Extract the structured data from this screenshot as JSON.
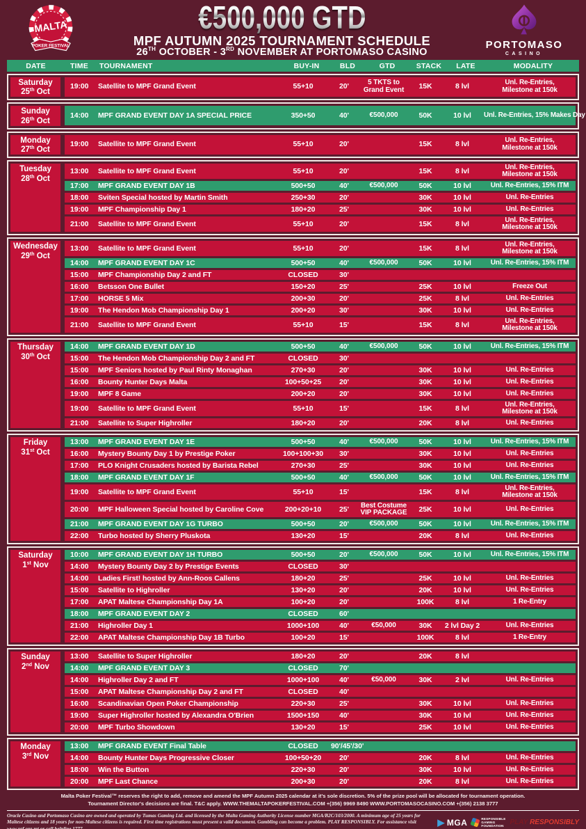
{
  "header": {
    "gtd": "€500,000 GTD",
    "title": "MPF AUTUMN 2025 TOURNAMENT SCHEDULE",
    "sub": {
      "d1": "26",
      "s1": "TH",
      "m1": " OCTOBER - ",
      "d2": "3",
      "s2": "RD",
      "m2": " NOVEMBER AT PORTOMASO CASINO"
    }
  },
  "logo_left": {
    "title": "MALTA",
    "subtitle": "POKER FESTIVAL"
  },
  "logo_right": {
    "title": "PORTOMASO",
    "subtitle": "CASINO"
  },
  "columns": [
    "DATE",
    "TIME",
    "TOURNAMENT",
    "BUY-IN",
    "BLD",
    "GTD",
    "STACK",
    "LATE",
    "MODALITY"
  ],
  "colors": {
    "background": "#5c1c2e",
    "row_crimson": "#c31238",
    "green": "#2f9c6e",
    "frame_white": "#f2e9e7",
    "play_red": "#e03a2f"
  },
  "schedule": [
    {
      "day": "Saturday",
      "date": "25th Oct",
      "rows": [
        {
          "time": "19:00",
          "name": "Satellite to MPF Grand Event",
          "buyin": "55+10",
          "bld": "20'",
          "gtd": "5 TKTS to\nGrand Event",
          "stack": "15K",
          "late": "8 lvl",
          "modality": "Unl. Re-Entries,\nMilestone at 150k",
          "green": false
        }
      ]
    },
    {
      "day": "Sunday",
      "date": "26th Oct",
      "rows": [
        {
          "time": "14:00",
          "name": "MPF GRAND EVENT DAY 1A SPECIAL PRICE",
          "buyin": "350+50",
          "bld": "40'",
          "gtd": "€500,000",
          "stack": "50K",
          "late": "10 lvl",
          "modality": "Unl. Re-Entries,\n15% Makes Day 2",
          "green": true
        }
      ]
    },
    {
      "day": "Monday",
      "date": "27th Oct",
      "rows": [
        {
          "time": "19:00",
          "name": "Satellite to MPF Grand Event",
          "buyin": "55+10",
          "bld": "20'",
          "gtd": "",
          "stack": "15K",
          "late": "8 lvl",
          "modality": "Unl. Re-Entries,\nMilestone at 150k",
          "green": false
        }
      ]
    },
    {
      "day": "Tuesday",
      "date": "28th Oct",
      "rows": [
        {
          "time": "13:00",
          "name": "Satellite to MPF Grand Event",
          "buyin": "55+10",
          "bld": "20'",
          "gtd": "",
          "stack": "15K",
          "late": "8 lvl",
          "modality": "Unl. Re-Entries,\nMilestone at 150k",
          "green": false
        },
        {
          "time": "17:00",
          "name": "MPF GRAND EVENT DAY 1B",
          "buyin": "500+50",
          "bld": "40'",
          "gtd": "€500,000",
          "stack": "50K",
          "late": "10 lvl",
          "modality": "Unl. Re-Entries, 15% ITM",
          "green": true
        },
        {
          "time": "18:00",
          "name": "Sviten Special hosted by Martin Smith",
          "buyin": "250+30",
          "bld": "20'",
          "gtd": "",
          "stack": "30K",
          "late": "10 lvl",
          "modality": "Unl. Re-Entries",
          "green": false
        },
        {
          "time": "19:00",
          "name": "MPF Championship Day 1",
          "buyin": "180+20",
          "bld": "25'",
          "gtd": "",
          "stack": "30K",
          "late": "10 lvl",
          "modality": "Unl. Re-Entries",
          "green": false
        },
        {
          "time": "21:00",
          "name": "Satellite to MPF Grand Event",
          "buyin": "55+10",
          "bld": "20'",
          "gtd": "",
          "stack": "15K",
          "late": "8 lvl",
          "modality": "Unl. Re-Entries,\nMilestone at 150k",
          "green": false
        }
      ]
    },
    {
      "day": "Wednesday",
      "date": "29th Oct",
      "rows": [
        {
          "time": "13:00",
          "name": "Satellite to MPF Grand Event",
          "buyin": "55+10",
          "bld": "20'",
          "gtd": "",
          "stack": "15K",
          "late": "8 lvl",
          "modality": "Unl. Re-Entries,\nMilestone at 150k",
          "green": false
        },
        {
          "time": "14:00",
          "name": "MPF GRAND EVENT DAY 1C",
          "buyin": "500+50",
          "bld": "40'",
          "gtd": "€500,000",
          "stack": "50K",
          "late": "10 lvl",
          "modality": "Unl. Re-Entries, 15% ITM",
          "green": true
        },
        {
          "time": "15:00",
          "name": "MPF Championship Day 2 and FT",
          "buyin": "CLOSED",
          "bld": "30'",
          "gtd": "",
          "stack": "",
          "late": "",
          "modality": "",
          "green": false
        },
        {
          "time": "16:00",
          "name": "Betsson One Bullet",
          "buyin": "150+20",
          "bld": "25'",
          "gtd": "",
          "stack": "25K",
          "late": "10 lvl",
          "modality": "Freeze Out",
          "green": false
        },
        {
          "time": "17:00",
          "name": "HORSE 5 Mix",
          "buyin": "200+30",
          "bld": "20'",
          "gtd": "",
          "stack": "25K",
          "late": "8 lvl",
          "modality": "Unl. Re-Entries",
          "green": false
        },
        {
          "time": "19:00",
          "name": "The Hendon Mob Championship Day 1",
          "buyin": "200+20",
          "bld": "30'",
          "gtd": "",
          "stack": "30K",
          "late": "10 lvl",
          "modality": "Unl. Re-Entries",
          "green": false
        },
        {
          "time": "21:00",
          "name": "Satellite to MPF Grand Event",
          "buyin": "55+10",
          "bld": "15'",
          "gtd": "",
          "stack": "15K",
          "late": "8 lvl",
          "modality": "Unl. Re-Entries,\nMilestone at 150k",
          "green": false
        }
      ]
    },
    {
      "day": "Thursday",
      "date": "30th Oct",
      "rows": [
        {
          "time": "14:00",
          "name": "MPF GRAND EVENT DAY 1D",
          "buyin": "500+50",
          "bld": "40'",
          "gtd": "€500,000",
          "stack": "50K",
          "late": "10 lvl",
          "modality": "Unl. Re-Entries, 15% ITM",
          "green": true
        },
        {
          "time": "15:00",
          "name": "The Hendon Mob Championship Day 2 and FT",
          "buyin": "CLOSED",
          "bld": "30'",
          "gtd": "",
          "stack": "",
          "late": "",
          "modality": "",
          "green": false
        },
        {
          "time": "15:00",
          "name": "MPF Seniors hosted by Paul Rinty Monaghan",
          "buyin": "270+30",
          "bld": "20'",
          "gtd": "",
          "stack": "30K",
          "late": "10 lvl",
          "modality": "Unl. Re-Entries",
          "green": false
        },
        {
          "time": "16:00",
          "name": "Bounty Hunter Days Malta",
          "buyin": "100+50+25",
          "bld": "20'",
          "gtd": "",
          "stack": "30K",
          "late": "10 lvl",
          "modality": "Unl. Re-Entries",
          "green": false
        },
        {
          "time": "19:00",
          "name": "MPF 8 Game",
          "buyin": "200+20",
          "bld": "20'",
          "gtd": "",
          "stack": "30K",
          "late": "10 lvl",
          "modality": "Unl. Re-Entries",
          "green": false
        },
        {
          "time": "19:00",
          "name": "Satellite to MPF Grand Event",
          "buyin": "55+10",
          "bld": "15'",
          "gtd": "",
          "stack": "15K",
          "late": "8 lvl",
          "modality": "Unl. Re-Entries,\nMilestone at 150k",
          "green": false
        },
        {
          "time": "21:00",
          "name": "Satellite to Super Highroller",
          "buyin": "180+20",
          "bld": "20'",
          "gtd": "",
          "stack": "20K",
          "late": "8 lvl",
          "modality": "Unl. Re-Entries",
          "green": false
        }
      ]
    },
    {
      "day": "Friday",
      "date": "31st Oct",
      "rows": [
        {
          "time": "13:00",
          "name": "MPF GRAND EVENT DAY 1E",
          "buyin": "500+50",
          "bld": "40'",
          "gtd": "€500,000",
          "stack": "50K",
          "late": "10 lvl",
          "modality": "Unl. Re-Entries, 15% ITM",
          "green": true
        },
        {
          "time": "16:00",
          "name": "Mystery Bounty Day 1 by Prestige Poker",
          "buyin": "100+100+30",
          "bld": "30'",
          "gtd": "",
          "stack": "30K",
          "late": "10 lvl",
          "modality": "Unl. Re-Entries",
          "green": false
        },
        {
          "time": "17:00",
          "name": "PLO Knight Crusaders hosted by Barista Rebel",
          "buyin": "270+30",
          "bld": "25'",
          "gtd": "",
          "stack": "30K",
          "late": "10 lvl",
          "modality": "Unl. Re-Entries",
          "green": false
        },
        {
          "time": "18:00",
          "name": "MPF GRAND EVENT DAY 1F",
          "buyin": "500+50",
          "bld": "40'",
          "gtd": "€500,000",
          "stack": "50K",
          "late": "10 lvl",
          "modality": "Unl. Re-Entries, 15% ITM",
          "green": true
        },
        {
          "time": "19:00",
          "name": "Satellite to MPF Grand Event",
          "buyin": "55+10",
          "bld": "15'",
          "gtd": "",
          "stack": "15K",
          "late": "8 lvl",
          "modality": "Unl. Re-Entries,\nMilestone at 150k",
          "green": false
        },
        {
          "time": "20:00",
          "name": "MPF Halloween Special hosted by Caroline Cove",
          "buyin": "200+20+10",
          "bld": "25'",
          "gtd": "Best Costume\nVIP PACKAGE",
          "stack": "25K",
          "late": "10 lvl",
          "modality": "Unl. Re-Entries",
          "green": false
        },
        {
          "time": "21:00",
          "name": "MPF GRAND EVENT DAY 1G TURBO",
          "buyin": "500+50",
          "bld": "20'",
          "gtd": "€500,000",
          "stack": "50K",
          "late": "10 lvl",
          "modality": "Unl. Re-Entries, 15% ITM",
          "green": true
        },
        {
          "time": "22:00",
          "name": "Turbo hosted by Sherry Pluskota",
          "buyin": "130+20",
          "bld": "15'",
          "gtd": "",
          "stack": "20K",
          "late": "8 lvl",
          "modality": "Unl. Re-Entries",
          "green": false
        }
      ]
    },
    {
      "day": "Saturday",
      "date": "1st Nov",
      "rows": [
        {
          "time": "10:00",
          "name": "MPF GRAND EVENT DAY 1H TURBO",
          "buyin": "500+50",
          "bld": "20'",
          "gtd": "€500,000",
          "stack": "50K",
          "late": "10 lvl",
          "modality": "Unl. Re-Entries, 15% ITM",
          "green": true
        },
        {
          "time": "14:00",
          "name": "Mystery Bounty Day 2 by Prestige Events",
          "buyin": "CLOSED",
          "bld": "30'",
          "gtd": "",
          "stack": "",
          "late": "",
          "modality": "",
          "green": false
        },
        {
          "time": "14:00",
          "name": "Ladies First! hosted by Ann-Roos Callens",
          "buyin": "180+20",
          "bld": "25'",
          "gtd": "",
          "stack": "25K",
          "late": "10 lvl",
          "modality": "Unl. Re-Entries",
          "green": false
        },
        {
          "time": "15:00",
          "name": "Satellite to Highroller",
          "buyin": "130+20",
          "bld": "20'",
          "gtd": "",
          "stack": "20K",
          "late": "10 lvl",
          "modality": "Unl. Re-Entries",
          "green": false
        },
        {
          "time": "17:00",
          "name": "APAT Maltese Championship Day 1A",
          "buyin": "100+20",
          "bld": "20'",
          "gtd": "",
          "stack": "100K",
          "late": "8 lvl",
          "modality": "1 Re-Entry",
          "green": false
        },
        {
          "time": "18:00",
          "name": "MPF GRAND EVENT DAY 2",
          "buyin": "CLOSED",
          "bld": "60'",
          "gtd": "",
          "stack": "",
          "late": "",
          "modality": "",
          "green": true
        },
        {
          "time": "21:00",
          "name": "Highroller Day 1",
          "buyin": "1000+100",
          "bld": "40'",
          "gtd": "€50,000",
          "stack": "30K",
          "late": "2 lvl Day 2",
          "modality": "Unl. Re-Entries",
          "green": false
        },
        {
          "time": "22:00",
          "name": "APAT Maltese Championship Day 1B Turbo",
          "buyin": "100+20",
          "bld": "15'",
          "gtd": "",
          "stack": "100K",
          "late": "8 lvl",
          "modality": "1 Re-Entry",
          "green": false
        }
      ]
    },
    {
      "day": "Sunday",
      "date": "2nd Nov",
      "rows": [
        {
          "time": "13:00",
          "name": "Satellite to Super Highroller",
          "buyin": "180+20",
          "bld": "20'",
          "gtd": "",
          "stack": "20K",
          "late": "8 lvl",
          "modality": "",
          "green": false
        },
        {
          "time": "14:00",
          "name": "MPF GRAND EVENT DAY 3",
          "buyin": "CLOSED",
          "bld": "70'",
          "gtd": "",
          "stack": "",
          "late": "",
          "modality": "",
          "green": true
        },
        {
          "time": "14:00",
          "name": "Highroller Day 2 and FT",
          "buyin": "1000+100",
          "bld": "40'",
          "gtd": "€50,000",
          "stack": "30K",
          "late": "2 lvl",
          "modality": "Unl. Re-Entries",
          "green": false
        },
        {
          "time": "15:00",
          "name": "APAT Maltese Championship Day 2 and FT",
          "buyin": "CLOSED",
          "bld": "40'",
          "gtd": "",
          "stack": "",
          "late": "",
          "modality": "",
          "green": false
        },
        {
          "time": "16:00",
          "name": "Scandinavian Open Poker Championship",
          "buyin": "220+30",
          "bld": "25'",
          "gtd": "",
          "stack": "30K",
          "late": "10 lvl",
          "modality": "Unl. Re-Entries",
          "green": false
        },
        {
          "time": "19:00",
          "name": "Super Highroller hosted by Alexandra O'Brien",
          "buyin": "1500+150",
          "bld": "40'",
          "gtd": "",
          "stack": "30K",
          "late": "10 lvl",
          "modality": "Unl. Re-Entries",
          "green": false
        },
        {
          "time": "20:00",
          "name": "MPF Turbo Showdown",
          "buyin": "130+20",
          "bld": "15'",
          "gtd": "",
          "stack": "25K",
          "late": "10 lvl",
          "modality": "Unl. Re-Entries",
          "green": false
        }
      ]
    },
    {
      "day": "Monday",
      "date": "3rd Nov",
      "rows": [
        {
          "time": "13:00",
          "name": "MPF GRAND EVENT Final Table",
          "buyin": "CLOSED",
          "bld": "90'/45'/30'",
          "gtd": "",
          "stack": "",
          "late": "",
          "modality": "",
          "green": true
        },
        {
          "time": "14:00",
          "name": "Bounty Hunter Days Progressive Closer",
          "buyin": "100+50+20",
          "bld": "20'",
          "gtd": "",
          "stack": "20K",
          "late": "8 lvl",
          "modality": "Unl. Re-Entries",
          "green": false
        },
        {
          "time": "18:00",
          "name": "Win the Button",
          "buyin": "220+30",
          "bld": "20'",
          "gtd": "",
          "stack": "30K",
          "late": "10 lvl",
          "modality": "Unl. Re-Entries",
          "green": false
        },
        {
          "time": "20:00",
          "name": "MPF Last Chance",
          "buyin": "200+30",
          "bld": "20'",
          "gtd": "",
          "stack": "20K",
          "late": "8 lvl",
          "modality": "Unl. Re-Entries",
          "green": false
        }
      ]
    }
  ],
  "footer": {
    "disclaimer1": "Malta Poker Festival™ reserves the right to add, remove and amend the MPF Autumn 2025 calendar at it's sole discretion. 5% of the prize pool will be allocated for tournament operation.",
    "disclaimer2": "Tournament Director's decisions are final. T&C apply. WWW.THEMALTAPOKERFESTIVAL.COM  +(356) 9969 8490  WWW.PORTOMASOCASINO.COM  +(356) 2138 3777",
    "legal": "Oracle Casino and Portomaso Casino are owned and operated by Tumas Gaming Ltd. and licensed by the Malta Gaming Authority License number MGA/B2C/103/2000. A minimum age of 25 years for Maltese citizens and 18 years for non-Maltese citizens is required. First time registrations must present a valid document. Gambling can become a problem. PLAY RESPONSIBLY. For assistance visit www.rgf.org.mt or call helpline 1777.",
    "mga_label": "MGA",
    "rgf_label": "RESPONSIBLE\nGAMING\nFOUNDATION",
    "play_word1": "PLAY",
    "play_word2": "RESPONSIBLY"
  }
}
